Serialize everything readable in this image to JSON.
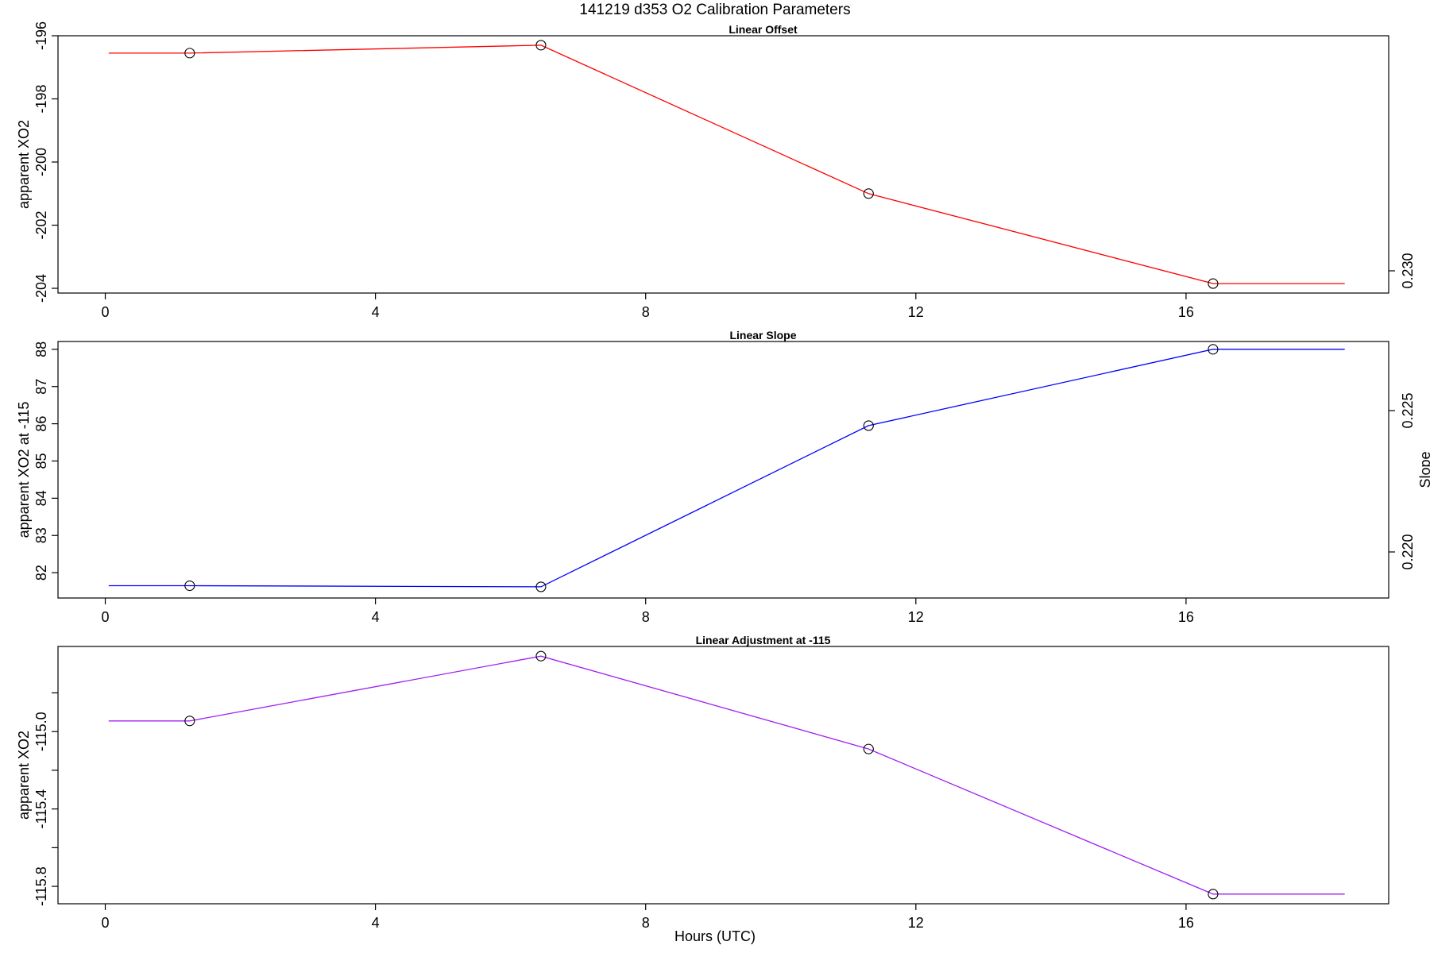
{
  "title": "141219   d353   O2 Calibration Parameters",
  "xlabel": "Hours (UTC)",
  "chart_data": [
    {
      "type": "line",
      "title": "Linear Offset",
      "ylabel": "apparent XO2",
      "color": "#ff0000",
      "xlim": [
        -0.7,
        19.0
      ],
      "ylim": [
        -204.15,
        -196.0
      ],
      "xticks": [
        0,
        4,
        8,
        12,
        16
      ],
      "yticks": [
        -196,
        -198,
        -200,
        -202,
        -204
      ],
      "line": {
        "x": [
          0.05,
          1.25,
          6.45,
          11.3,
          16.4,
          18.35
        ],
        "y": [
          -196.55,
          -196.55,
          -196.3,
          -201.0,
          -203.85,
          -203.85
        ]
      },
      "points": {
        "x": [
          1.25,
          6.45,
          11.3,
          16.4
        ],
        "y": [
          -196.55,
          -196.3,
          -201.0,
          -203.85
        ]
      }
    },
    {
      "type": "line",
      "title": "Linear Slope",
      "ylabel": "apparent XO2 at -115",
      "ylabel_right": "Slope",
      "color": "#0000ff",
      "xlim": [
        -0.7,
        19.0
      ],
      "ylim": [
        81.32,
        88.21
      ],
      "xticks": [
        0,
        4,
        8,
        12,
        16
      ],
      "yticks": [
        82,
        83,
        84,
        85,
        86,
        87,
        88
      ],
      "right_yticks": [
        "0.220",
        "0.225",
        "0.230"
      ],
      "line": {
        "x": [
          0.05,
          1.25,
          6.45,
          11.3,
          16.4,
          18.35
        ],
        "y": [
          81.65,
          81.65,
          81.62,
          85.95,
          88.0,
          88.0
        ]
      },
      "points": {
        "x": [
          1.25,
          6.45,
          11.3,
          16.4
        ],
        "y": [
          81.65,
          81.62,
          85.95,
          88.0
        ]
      }
    },
    {
      "type": "line",
      "title": "Linear Adjustment at -115",
      "ylabel": "apparent XO2",
      "color": "#a020f0",
      "xlim": [
        -0.7,
        19.0
      ],
      "ylim": [
        -115.89,
        -114.56
      ],
      "xticks": [
        0,
        4,
        8,
        12,
        16
      ],
      "yticks": [
        -114.8,
        -115.0,
        -115.2,
        -115.4,
        -115.6,
        -115.8
      ],
      "ytick_labels": [
        "",
        "-115.0",
        "",
        "-115.4",
        "",
        "-115.8"
      ],
      "line": {
        "x": [
          0.05,
          1.25,
          6.45,
          11.3,
          16.4,
          18.35
        ],
        "y": [
          -114.945,
          -114.945,
          -114.61,
          -115.09,
          -115.84,
          -115.84
        ]
      },
      "points": {
        "x": [
          1.25,
          6.45,
          11.3,
          16.4
        ],
        "y": [
          -114.945,
          -114.61,
          -115.09,
          -115.84
        ]
      }
    }
  ]
}
